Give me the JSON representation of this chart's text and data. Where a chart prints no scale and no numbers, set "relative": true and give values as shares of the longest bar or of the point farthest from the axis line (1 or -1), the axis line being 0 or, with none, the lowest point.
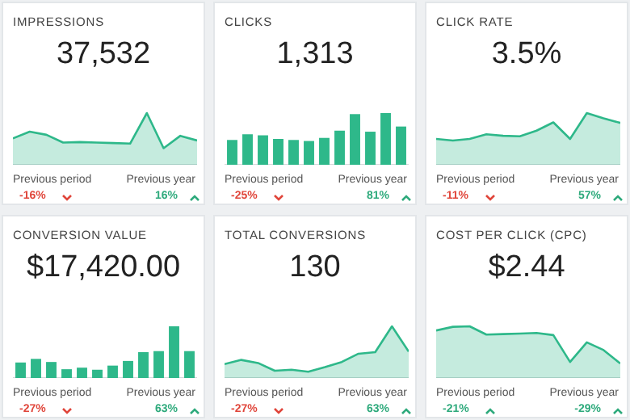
{
  "chart_data": [
    {
      "type": "area",
      "title": "IMPRESSIONS",
      "subtitle": "37,532",
      "relative": true,
      "color": "#2eb88a",
      "categories": [
        null,
        null,
        null,
        null,
        null,
        null,
        null,
        null,
        null,
        null,
        null,
        null
      ],
      "values": [
        0.51,
        0.64,
        0.58,
        0.43,
        0.44,
        0.43,
        0.42,
        0.41,
        1,
        0.32,
        0.56,
        0.47
      ],
      "annotations": [
        "Previous period",
        "-16%",
        "Previous year",
        "16%"
      ]
    },
    {
      "type": "bar",
      "title": "CLICKS",
      "subtitle": "1,313",
      "relative": true,
      "color": "#2eb88a",
      "categories": [
        null,
        null,
        null,
        null,
        null,
        null,
        null,
        null,
        null,
        null,
        null,
        null
      ],
      "values": [
        0.48,
        0.59,
        0.57,
        0.5,
        0.48,
        0.46,
        0.52,
        0.66,
        0.98,
        0.64,
        1,
        0.74
      ],
      "annotations": [
        "Previous period",
        "-25%",
        "Previous year",
        "81%"
      ]
    },
    {
      "type": "area",
      "title": "CLICK RATE",
      "subtitle": "3.5%",
      "relative": true,
      "color": "#2eb88a",
      "categories": [
        null,
        null,
        null,
        null,
        null,
        null,
        null,
        null,
        null,
        null,
        null,
        null
      ],
      "values": [
        0.5,
        0.47,
        0.5,
        0.59,
        0.56,
        0.55,
        0.66,
        0.82,
        0.5,
        1,
        0.9,
        0.81
      ],
      "annotations": [
        "Previous period",
        "-11%",
        "Previous year",
        "57%"
      ]
    },
    {
      "type": "bar",
      "title": "CONVERSION VALUE",
      "subtitle": "$17,420.00",
      "relative": true,
      "color": "#2eb88a",
      "categories": [
        null,
        null,
        null,
        null,
        null,
        null,
        null,
        null,
        null,
        null,
        null,
        null
      ],
      "values": [
        0.3,
        0.37,
        0.31,
        0.17,
        0.2,
        0.16,
        0.24,
        0.33,
        0.5,
        0.52,
        1,
        0.52
      ],
      "annotations": [
        "Previous period",
        "-27%",
        "Previous year",
        "63%"
      ]
    },
    {
      "type": "area",
      "title": "TOTAL CONVERSIONS",
      "subtitle": "130",
      "relative": true,
      "color": "#2eb88a",
      "categories": [
        null,
        null,
        null,
        null,
        null,
        null,
        null,
        null,
        null,
        null,
        null,
        null
      ],
      "values": [
        0.27,
        0.35,
        0.29,
        0.14,
        0.16,
        0.12,
        0.21,
        0.31,
        0.47,
        0.5,
        1,
        0.51
      ],
      "annotations": [
        "Previous period",
        "-27%",
        "Previous year",
        "63%"
      ]
    },
    {
      "type": "area",
      "title": "COST PER CLICK (CPC)",
      "subtitle": "$2.44",
      "relative": true,
      "color": "#2eb88a",
      "categories": [
        null,
        null,
        null,
        null,
        null,
        null,
        null,
        null,
        null,
        null,
        null,
        null
      ],
      "values": [
        0.92,
        0.99,
        1,
        0.84,
        0.85,
        0.86,
        0.87,
        0.83,
        0.31,
        0.69,
        0.54,
        0.28
      ],
      "annotations": [
        "Previous period",
        "-21%",
        "Previous year",
        "-29%"
      ]
    }
  ]
}
